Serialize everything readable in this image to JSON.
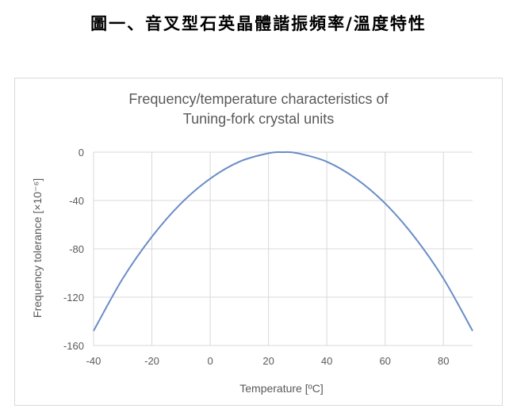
{
  "caption": "圖一、音叉型石英晶體諧振頻率/溫度特性",
  "colors": {
    "line": "#6a8cc7",
    "grid": "#d9d9d9",
    "text": "#595959",
    "frame": "#d9d9d9"
  },
  "chart_data": {
    "type": "line",
    "title": [
      "Frequency/temperature characteristics of",
      "Tuning-fork crystal units"
    ],
    "xlabel": "Temperature [ºC]",
    "ylabel": "Frequency tolerance [×10⁻⁶]",
    "xlim": [
      -40,
      90
    ],
    "ylim": [
      -160,
      0
    ],
    "xticks": [
      -40,
      -20,
      0,
      20,
      40,
      60,
      80
    ],
    "yticks": [
      0,
      -40,
      -80,
      -120,
      -160
    ],
    "grid": true,
    "series": [
      {
        "x": [
          -40,
          -30,
          -20,
          -10,
          0,
          10,
          20,
          25,
          30,
          40,
          50,
          60,
          70,
          80,
          90
        ],
        "y": [
          -147.9,
          -104.6,
          -70.0,
          -42.4,
          -21.9,
          -7.9,
          -0.9,
          0,
          -0.9,
          -7.9,
          -21.9,
          -42.4,
          -70.0,
          -104.6,
          -147.9
        ]
      }
    ]
  }
}
